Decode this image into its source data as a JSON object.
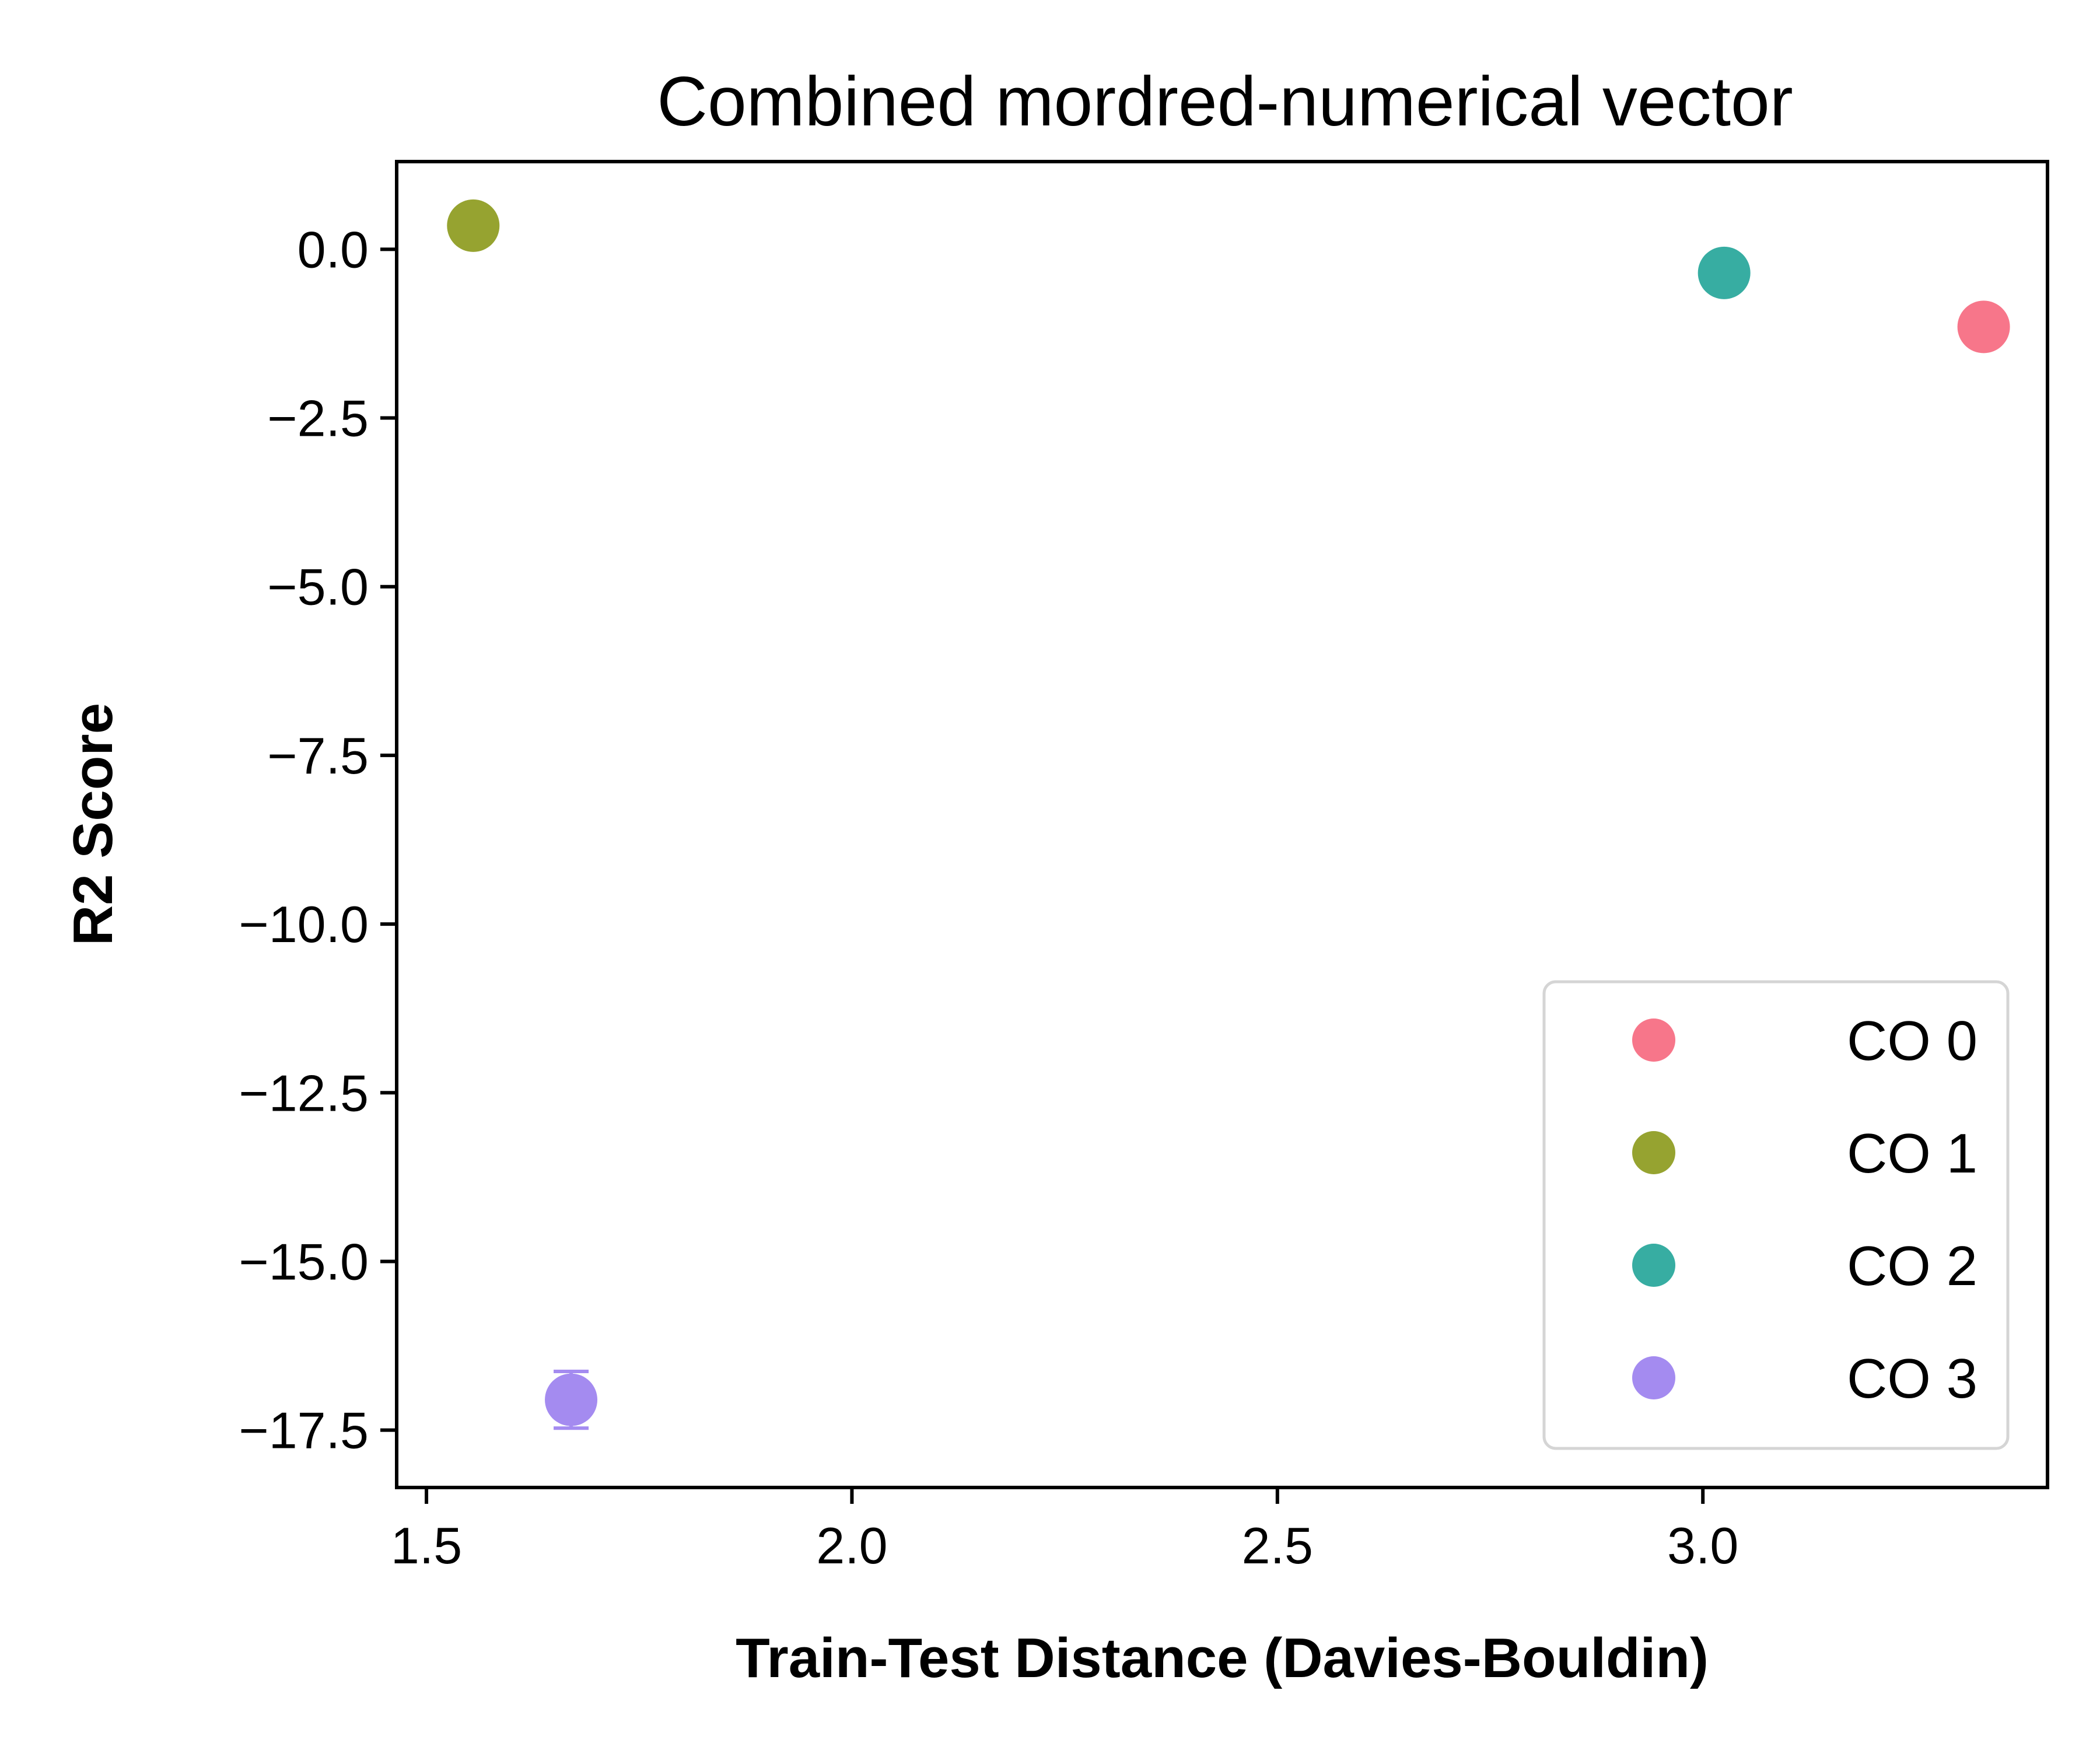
{
  "chart_data": {
    "type": "scatter",
    "title": "Combined mordred-numerical vector",
    "xlabel": "Train-Test Distance (Davies-Bouldin)",
    "ylabel": "R2 Score",
    "xlim": [
      1.465,
      3.405
    ],
    "ylim": [
      -18.35,
      1.3
    ],
    "xticks": [
      1.5,
      2.0,
      2.5,
      3.0
    ],
    "xtick_labels": [
      "1.5",
      "2.0",
      "2.5",
      "3.0"
    ],
    "yticks": [
      0.0,
      -2.5,
      -5.0,
      -7.5,
      -10.0,
      -12.5,
      -15.0,
      -17.5
    ],
    "ytick_labels": [
      "0.0",
      "−2.5",
      "−5.0",
      "−7.5",
      "−10.0",
      "−12.5",
      "−15.0",
      "−17.5"
    ],
    "grid": false,
    "legend_position": "lower-right",
    "series": [
      {
        "name": "CO 0",
        "color": "#f7768a",
        "x": 3.33,
        "y": -1.15,
        "err": 0.05
      },
      {
        "name": "CO 1",
        "color": "#96a330",
        "x": 1.555,
        "y": 0.35,
        "err": 0.05
      },
      {
        "name": "CO 2",
        "color": "#37ada2",
        "x": 3.025,
        "y": -0.35,
        "err": 0.05
      },
      {
        "name": "CO 3",
        "color": "#a48bf0",
        "x": 1.67,
        "y": -17.05,
        "err": 0.42
      }
    ]
  }
}
